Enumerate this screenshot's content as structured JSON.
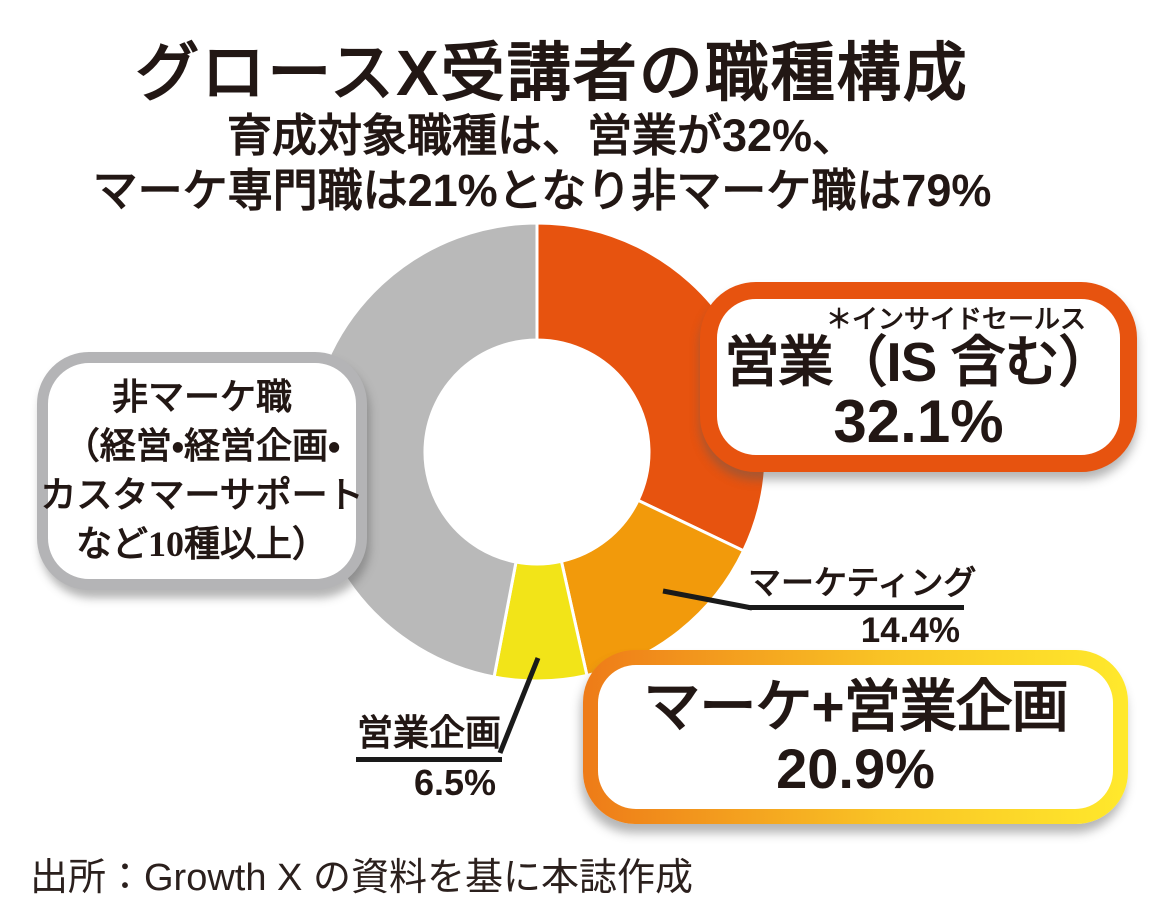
{
  "title": "グロースX受講者の職種構成",
  "subtitle": {
    "line1": "育成対象職種は、営業が32%、",
    "line2": "マーケ専門職は21%となり非マーケ職は79%"
  },
  "chart_data": {
    "type": "pie",
    "donut": true,
    "start_angle": "top",
    "direction": "clockwise",
    "title": "グロースX受講者の職種構成",
    "categories": [
      "営業（IS含む）",
      "マーケティング",
      "営業企画",
      "非マーケ職（経営・経営企画・カスタマーサポートなど10種以上）"
    ],
    "values": [
      32.1,
      14.4,
      6.5,
      47.0
    ],
    "colors": [
      "#e7530f",
      "#f29a0b",
      "#f2e418",
      "#b9b9b9"
    ],
    "gap_color": "#ffffff"
  },
  "callouts": {
    "sales": {
      "note": "＊インサイドセールス",
      "label": "営業（IS 含む）",
      "value": "32.1%",
      "border_color": "#e7530f"
    },
    "non_marketing": {
      "line1": "非マーケ職",
      "line2": "（経営・経営企画・",
      "line3": "カスタマーサポート",
      "line4": "など10種以上）",
      "border_color": "#b4b4b6"
    },
    "marke_plus_sales_planning": {
      "label": "マーケ+営業企画",
      "value": "20.9%",
      "border_gradient": [
        "#ee7b18",
        "#ffe92c"
      ]
    }
  },
  "segment_labels": {
    "marketing": {
      "label": "マーケティング",
      "value": "14.4%"
    },
    "sales_planning": {
      "label": "営業企画",
      "value": "6.5%"
    }
  },
  "source": "出所：Growth X の資料を基に本誌作成"
}
